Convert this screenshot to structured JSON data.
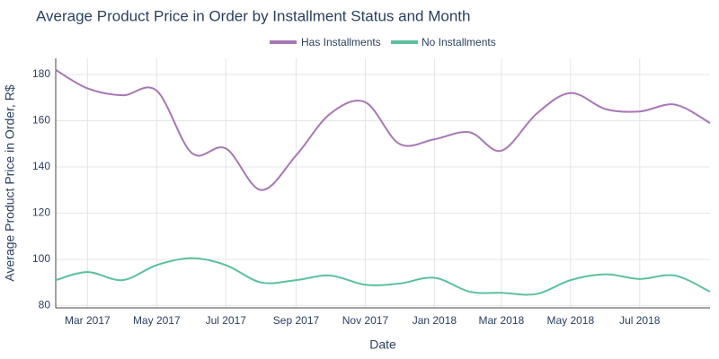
{
  "chart_data": {
    "type": "line",
    "title": "Average Product Price in Order by Installment Status and Month",
    "xlabel": "Date",
    "ylabel": "Average Product Price in Order, R$",
    "x": [
      "2017-02",
      "2017-03",
      "2017-04",
      "2017-05",
      "2017-06",
      "2017-07",
      "2017-08",
      "2017-09",
      "2017-10",
      "2017-11",
      "2017-12",
      "2018-01",
      "2018-02",
      "2018-03",
      "2018-04",
      "2018-05",
      "2018-06",
      "2018-07",
      "2018-08",
      "2018-09"
    ],
    "series": [
      {
        "name": "Has Installments",
        "color": "#a777b5",
        "values": [
          182,
          174,
          171,
          173,
          146,
          148,
          130,
          145,
          163,
          168,
          150,
          152,
          155,
          147,
          163,
          172,
          165,
          164,
          167,
          159
        ]
      },
      {
        "name": "No Installments",
        "color": "#5cc0a0",
        "values": [
          91,
          94.5,
          91,
          97.5,
          100.5,
          97.5,
          90,
          91,
          93,
          89,
          89.5,
          92,
          86,
          85.5,
          85,
          91,
          93.5,
          91.5,
          93,
          86
        ]
      }
    ],
    "xlim": [
      "2017-02",
      "2018-09"
    ],
    "xticks": [
      {
        "value": "2017-03",
        "label": "Mar 2017"
      },
      {
        "value": "2017-05",
        "label": "May 2017"
      },
      {
        "value": "2017-07",
        "label": "Jul 2017"
      },
      {
        "value": "2017-09",
        "label": "Sep 2017"
      },
      {
        "value": "2017-11",
        "label": "Nov 2017"
      },
      {
        "value": "2018-01",
        "label": "Jan 2018"
      },
      {
        "value": "2018-03",
        "label": "Mar 2018"
      },
      {
        "value": "2018-05",
        "label": "May 2018"
      },
      {
        "value": "2018-07",
        "label": "Jul 2018"
      }
    ],
    "ylim": [
      79,
      187
    ],
    "yticks": [
      80,
      100,
      120,
      140,
      160,
      180
    ],
    "grid": true
  }
}
